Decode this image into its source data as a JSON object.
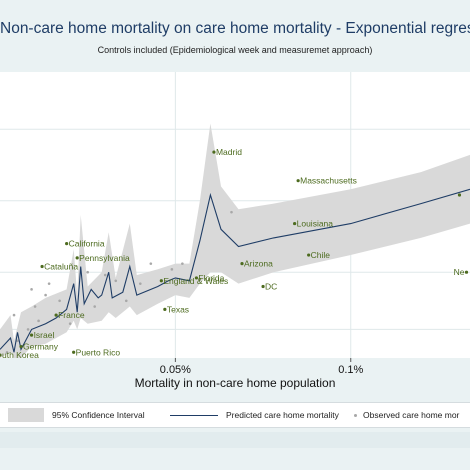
{
  "chart_data": {
    "type": "line",
    "title": "Non-care home mortality on care home mortality - Exponential regressi",
    "subtitle": "Controls included (Epidemiological week and measuremet approach)",
    "xlabel": "Mortality in non-care home population",
    "ylabel": "",
    "x_ticks": [
      {
        "value": 0.0005,
        "label": "0.05%"
      },
      {
        "value": 0.001,
        "label": "0.1%"
      }
    ],
    "xlim": [
      0.0,
      0.00134
    ],
    "ylim": [
      0,
      1
    ],
    "grid": true,
    "legend": {
      "position": "bottom",
      "entries": [
        "95% Confidence Interval",
        "Predicted care home mortality",
        "Observed care home mor"
      ]
    },
    "series": [
      {
        "name": "Predicted care home mortality",
        "points": [
          [
            0.0,
            0.03
          ],
          [
            3e-05,
            0.07
          ],
          [
            4e-05,
            0.02
          ],
          [
            5e-05,
            0.09
          ],
          [
            6e-05,
            0.03
          ],
          [
            9e-05,
            0.1
          ],
          [
            0.00013,
            0.12
          ],
          [
            0.00016,
            0.14
          ],
          [
            0.00019,
            0.17
          ],
          [
            0.00021,
            0.26
          ],
          [
            0.00022,
            0.16
          ],
          [
            0.00023,
            0.32
          ],
          [
            0.00024,
            0.19
          ],
          [
            0.00026,
            0.24
          ],
          [
            0.00028,
            0.21
          ],
          [
            0.00029,
            0.22
          ],
          [
            0.00031,
            0.3
          ],
          [
            0.00032,
            0.21
          ],
          [
            0.00035,
            0.23
          ],
          [
            0.00037,
            0.32
          ],
          [
            0.00039,
            0.22
          ],
          [
            0.00045,
            0.25
          ],
          [
            0.00048,
            0.27
          ],
          [
            0.0005,
            0.28
          ],
          [
            0.00054,
            0.27
          ],
          [
            0.00057,
            0.41
          ],
          [
            0.0006,
            0.57
          ],
          [
            0.00063,
            0.45
          ],
          [
            0.00068,
            0.39
          ],
          [
            0.00078,
            0.42
          ],
          [
            0.001,
            0.47
          ],
          [
            0.0012,
            0.54
          ],
          [
            0.00134,
            0.59
          ]
        ]
      }
    ],
    "labeled_points": [
      {
        "label": "Madrid",
        "x": 0.00061,
        "y": 0.72
      },
      {
        "label": "Massachusetts",
        "x": 0.00085,
        "y": 0.62
      },
      {
        "label": "Pennsylvania",
        "x": 0.00022,
        "y": 0.35
      },
      {
        "label": "California",
        "x": 0.00019,
        "y": 0.4
      },
      {
        "label": "Louisiana",
        "x": 0.00084,
        "y": 0.47
      },
      {
        "label": "Cataluña",
        "x": 0.00012,
        "y": 0.32
      },
      {
        "label": "Arizona",
        "x": 0.00069,
        "y": 0.33
      },
      {
        "label": "Chile",
        "x": 0.00088,
        "y": 0.36
      },
      {
        "label": "Florida",
        "x": 0.00056,
        "y": 0.28
      },
      {
        "label": "DC",
        "x": 0.00075,
        "y": 0.25
      },
      {
        "label": "England & Wales",
        "x": 0.00046,
        "y": 0.27
      },
      {
        "label": "France",
        "x": 0.00016,
        "y": 0.15
      },
      {
        "label": "Texas",
        "x": 0.00047,
        "y": 0.17
      },
      {
        "label": "Israel",
        "x": 9e-05,
        "y": 0.08
      },
      {
        "label": "Germany",
        "x": 6e-05,
        "y": 0.04
      },
      {
        "label": "Puerto Rico",
        "x": 0.00021,
        "y": 0.02
      },
      {
        "label": "uth Korea",
        "x": 0.0,
        "y": 0.01
      },
      {
        "label": "Ne",
        "x": 0.00133,
        "y": 0.3
      },
      {
        "label": "",
        "x": 0.00131,
        "y": 0.57
      }
    ],
    "unlabeled_points": [
      [
        2e-05,
        0.02
      ],
      [
        5e-05,
        0.06
      ],
      [
        8e-05,
        0.1
      ],
      [
        0.0001,
        0.18
      ],
      [
        0.00011,
        0.13
      ],
      [
        0.00013,
        0.22
      ],
      [
        0.00014,
        0.26
      ],
      [
        0.00017,
        0.2
      ],
      [
        0.0002,
        0.12
      ],
      [
        0.00025,
        0.3
      ],
      [
        0.00027,
        0.18
      ],
      [
        0.0003,
        0.29
      ],
      [
        0.00033,
        0.27
      ],
      [
        0.00036,
        0.2
      ],
      [
        0.0004,
        0.26
      ],
      [
        0.00043,
        0.33
      ],
      [
        0.00049,
        0.31
      ],
      [
        0.00052,
        0.33
      ],
      [
        0.00066,
        0.51
      ],
      [
        9e-05,
        0.24
      ],
      [
        4e-05,
        0.15
      ]
    ],
    "confidence_band": {
      "name": "95% Confidence Interval",
      "upper": [
        [
          0.0,
          0.1
        ],
        [
          3e-05,
          0.15
        ],
        [
          4e-05,
          0.06
        ],
        [
          6e-05,
          0.16
        ],
        [
          9e-05,
          0.18
        ],
        [
          0.00013,
          0.21
        ],
        [
          0.00019,
          0.24
        ],
        [
          0.00021,
          0.38
        ],
        [
          0.00022,
          0.22
        ],
        [
          0.00023,
          0.5
        ],
        [
          0.00025,
          0.25
        ],
        [
          0.00029,
          0.3
        ],
        [
          0.00031,
          0.44
        ],
        [
          0.00033,
          0.28
        ],
        [
          0.00037,
          0.47
        ],
        [
          0.00039,
          0.29
        ],
        [
          0.00045,
          0.31
        ],
        [
          0.0005,
          0.33
        ],
        [
          0.00054,
          0.33
        ],
        [
          0.00057,
          0.55
        ],
        [
          0.0006,
          0.82
        ],
        [
          0.00063,
          0.6
        ],
        [
          0.00068,
          0.52
        ],
        [
          0.00078,
          0.54
        ],
        [
          0.001,
          0.59
        ],
        [
          0.0012,
          0.65
        ],
        [
          0.00134,
          0.71
        ]
      ],
      "lower": [
        [
          0.0,
          0.0
        ],
        [
          3e-05,
          0.02
        ],
        [
          4e-05,
          0.0
        ],
        [
          6e-05,
          0.0
        ],
        [
          9e-05,
          0.04
        ],
        [
          0.00013,
          0.05
        ],
        [
          0.00019,
          0.09
        ],
        [
          0.00021,
          0.13
        ],
        [
          0.00022,
          0.1
        ],
        [
          0.00023,
          0.14
        ],
        [
          0.00025,
          0.12
        ],
        [
          0.00029,
          0.13
        ],
        [
          0.00031,
          0.16
        ],
        [
          0.00033,
          0.14
        ],
        [
          0.00037,
          0.18
        ],
        [
          0.00039,
          0.15
        ],
        [
          0.00045,
          0.19
        ],
        [
          0.0005,
          0.22
        ],
        [
          0.00054,
          0.21
        ],
        [
          0.00057,
          0.26
        ],
        [
          0.0006,
          0.3
        ],
        [
          0.00063,
          0.3
        ],
        [
          0.00068,
          0.26
        ],
        [
          0.00078,
          0.3
        ],
        [
          0.001,
          0.36
        ],
        [
          0.0012,
          0.42
        ],
        [
          0.00134,
          0.47
        ]
      ]
    }
  },
  "colors": {
    "line": "#1f3d66",
    "band": "#d9d9d9",
    "label": "#4d6b1f",
    "dot": "#a8a8a8",
    "plot_bg": "#ffffff",
    "grid": "#dfe8ea"
  }
}
